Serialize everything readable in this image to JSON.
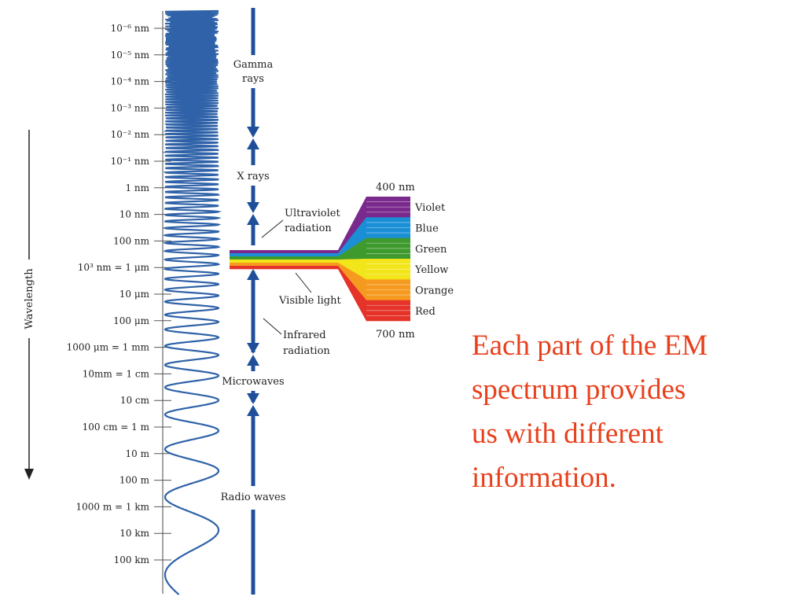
{
  "axis": {
    "title": "Wavelength"
  },
  "ticks": [
    "10⁻⁶ nm",
    "10⁻⁵ nm",
    "10⁻⁴ nm",
    "10⁻³ nm",
    "10⁻² nm",
    "10⁻¹ nm",
    "1 nm",
    "10 nm",
    "100 nm",
    "10³ nm = 1 μm",
    "10 μm",
    "100 μm",
    "1000 μm = 1 mm",
    "10mm = 1 cm",
    "10 cm",
    "100 cm = 1 m",
    "10 m",
    "100 m",
    "1000 m = 1 km",
    "10 km",
    "100 km"
  ],
  "regions": {
    "gamma": [
      "Gamma",
      "rays"
    ],
    "xrays": "X rays",
    "ultraviolet": [
      "Ultraviolet",
      "radiation"
    ],
    "visible": "Visible light",
    "infrared": [
      "Infrared",
      "radiation"
    ],
    "microwaves": "Microwaves",
    "radio": "Radio waves"
  },
  "visible_range": {
    "short": "400 nm",
    "long": "700 nm"
  },
  "visible_colors": [
    {
      "label": "Violet",
      "color": "#7a2a8c"
    },
    {
      "label": "Blue",
      "color": "#1a8fd6"
    },
    {
      "label": "Green",
      "color": "#3f9a2e"
    },
    {
      "label": "Yellow",
      "color": "#f2e51a"
    },
    {
      "label": "Orange",
      "color": "#f59a1e"
    },
    {
      "label": "Red",
      "color": "#e5332a"
    }
  ],
  "caption": {
    "lines": [
      "Each part of the EM",
      "spectrum provides",
      "us with different",
      "information."
    ],
    "color": "#e8401c"
  },
  "colors": {
    "wave": "#2f62a8",
    "spectrum_bar": "#1f4f9a",
    "ruler": "#555555"
  }
}
